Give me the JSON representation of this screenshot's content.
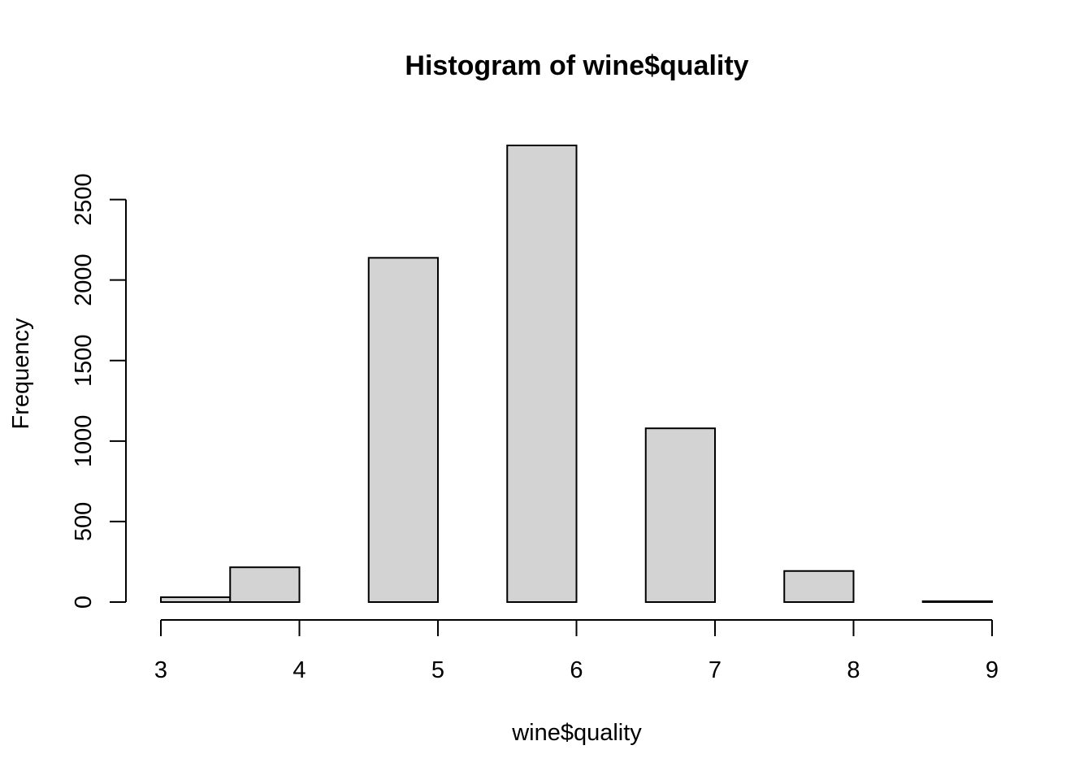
{
  "chart_data": {
    "type": "bar",
    "title": "Histogram of wine$quality",
    "xlabel": "wine$quality",
    "ylabel": "Frequency",
    "bins": [
      {
        "start": 3.0,
        "end": 3.5,
        "count": 30
      },
      {
        "start": 3.5,
        "end": 4.0,
        "count": 216
      },
      {
        "start": 4.0,
        "end": 4.5,
        "count": 0
      },
      {
        "start": 4.5,
        "end": 5.0,
        "count": 2138
      },
      {
        "start": 5.0,
        "end": 5.5,
        "count": 0
      },
      {
        "start": 5.5,
        "end": 6.0,
        "count": 2836
      },
      {
        "start": 6.0,
        "end": 6.5,
        "count": 0
      },
      {
        "start": 6.5,
        "end": 7.0,
        "count": 1079
      },
      {
        "start": 7.0,
        "end": 7.5,
        "count": 0
      },
      {
        "start": 7.5,
        "end": 8.0,
        "count": 193
      },
      {
        "start": 8.0,
        "end": 8.5,
        "count": 0
      },
      {
        "start": 8.5,
        "end": 9.0,
        "count": 5
      }
    ],
    "xlim": [
      3,
      9
    ],
    "ylim": [
      0,
      2836
    ],
    "x_ticks": [
      3,
      4,
      5,
      6,
      7,
      8,
      9
    ],
    "y_ticks": [
      0,
      500,
      1000,
      1500,
      2000,
      2500
    ],
    "bar_fill": "#d3d3d3",
    "bar_stroke": "#000000",
    "grid": false
  }
}
